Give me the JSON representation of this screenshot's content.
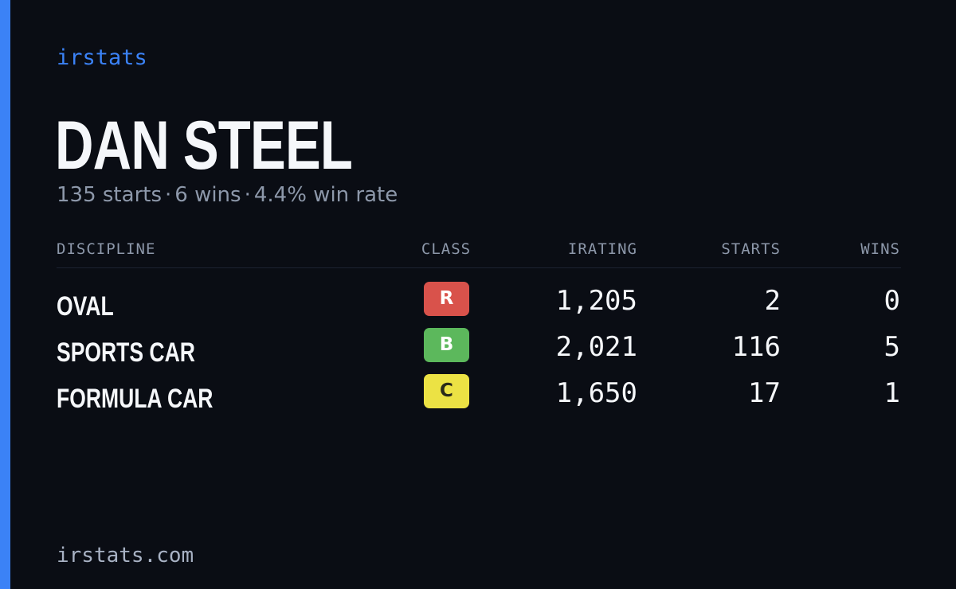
{
  "brand": "irstats",
  "driver": {
    "name": "DAN STEEL",
    "starts": "135 starts",
    "wins": "6 wins",
    "win_rate": "4.4% win rate",
    "separator": "·"
  },
  "table": {
    "headers": {
      "discipline": "DISCIPLINE",
      "class": "CLASS",
      "irating": "IRATING",
      "starts": "STARTS",
      "wins": "WINS"
    },
    "rows": [
      {
        "discipline": "OVAL",
        "class": "R",
        "class_color": "#d9524b",
        "class_text_color": "#ffffff",
        "irating": "1,205",
        "starts": "2",
        "wins": "0"
      },
      {
        "discipline": "SPORTS CAR",
        "class": "B",
        "class_color": "#5cb85c",
        "class_text_color": "#ffffff",
        "irating": "2,021",
        "starts": "116",
        "wins": "5"
      },
      {
        "discipline": "FORMULA CAR",
        "class": "C",
        "class_color": "#ece244",
        "class_text_color": "#2a2a1a",
        "irating": "1,650",
        "starts": "17",
        "wins": "1"
      }
    ]
  },
  "footer": {
    "url": "irstats.com"
  },
  "colors": {
    "background": "#0a0d14",
    "accent": "#3b82f6",
    "text_primary": "#f5f7fa",
    "text_muted": "#8d98aa"
  }
}
